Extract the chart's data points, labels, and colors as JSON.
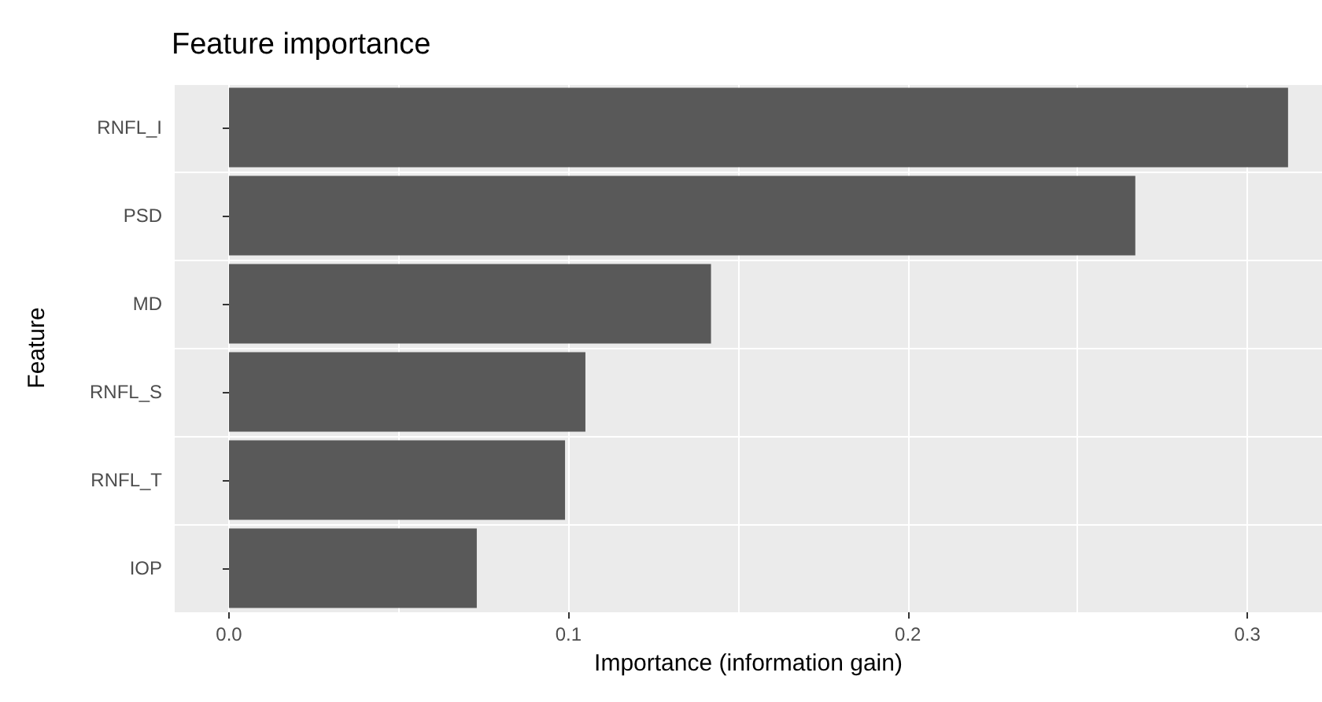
{
  "chart_data": {
    "type": "bar",
    "orientation": "horizontal",
    "title": "Feature importance",
    "xlabel": "Importance (information gain)",
    "ylabel": "Feature",
    "categories": [
      "RNFL_I",
      "PSD",
      "MD",
      "RNFL_S",
      "RNFL_T",
      "IOP"
    ],
    "values": [
      0.312,
      0.267,
      0.142,
      0.105,
      0.099,
      0.073
    ],
    "color": "#595959",
    "xlim": [
      -0.016,
      0.322
    ],
    "xticks": [
      {
        "value": 0,
        "label": "0.0"
      },
      {
        "value": 0.05,
        "label": null
      },
      0.1,
      {
        "value": 0.15,
        "label": null
      },
      0.2,
      {
        "value": 0.25,
        "label": null
      },
      0.3
    ],
    "grid": true
  }
}
